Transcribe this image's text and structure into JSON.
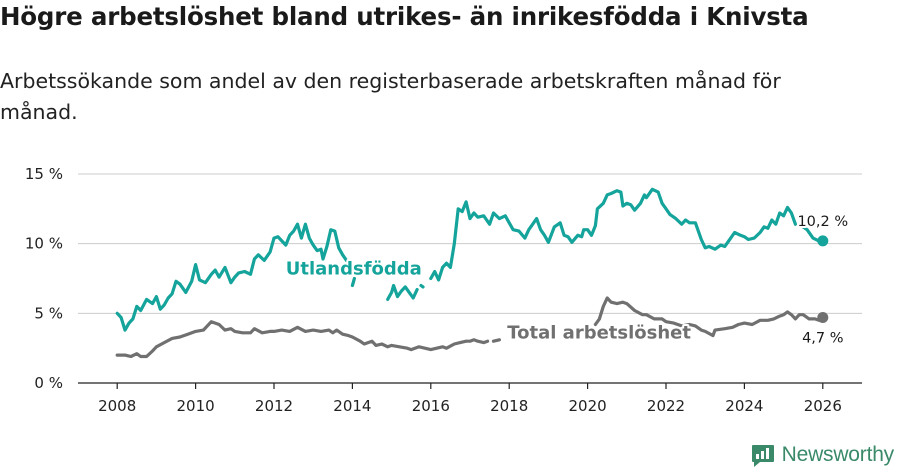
{
  "title": "Högre arbetslöshet bland utrikes- än inrikesfödda i Knivsta",
  "subtitle": "Arbetssökande som andel av den registerbaserade arbetskraften månad för månad.",
  "brand": "Newsworthy",
  "colors": {
    "teal": "#15a49b",
    "gray": "#707070",
    "grid": "#cccccc",
    "brand": "#3a8a6a"
  },
  "chart_data": {
    "type": "line",
    "title": "Högre arbetslöshet bland utrikes- än inrikesfödda i Knivsta",
    "xlabel": "",
    "ylabel": "",
    "xlim": [
      2007.0,
      2027.0
    ],
    "ylim": [
      0,
      15
    ],
    "x_ticks": [
      2008,
      2010,
      2012,
      2014,
      2016,
      2018,
      2020,
      2022,
      2024,
      2026
    ],
    "x_tick_labels": [
      "2008",
      "2010",
      "2012",
      "2014",
      "2016",
      "2018",
      "2020",
      "2022",
      "2024",
      "2026"
    ],
    "y_ticks": [
      0,
      5,
      10,
      15
    ],
    "y_tick_labels": [
      "0 %",
      "5 %",
      "10 %",
      "15 %"
    ],
    "grid": "horizontal",
    "series": [
      {
        "name": "Utlandsfödda",
        "color": "#15a49b",
        "label_position": [
          2012.3,
          7.8
        ],
        "end_label": "10,2 %",
        "segments": [
          [
            [
              2008.0,
              5.0
            ],
            [
              2008.1,
              4.7
            ],
            [
              2008.2,
              3.8
            ],
            [
              2008.3,
              4.3
            ],
            [
              2008.4,
              4.6
            ],
            [
              2008.5,
              5.5
            ],
            [
              2008.6,
              5.2
            ],
            [
              2008.75,
              6.0
            ],
            [
              2008.9,
              5.7
            ],
            [
              2009.0,
              6.2
            ],
            [
              2009.1,
              5.3
            ],
            [
              2009.2,
              5.6
            ],
            [
              2009.3,
              6.1
            ],
            [
              2009.4,
              6.4
            ],
            [
              2009.5,
              7.3
            ],
            [
              2009.6,
              7.1
            ],
            [
              2009.75,
              6.5
            ],
            [
              2009.9,
              7.3
            ],
            [
              2010.0,
              8.5
            ],
            [
              2010.1,
              7.4
            ],
            [
              2010.25,
              7.2
            ],
            [
              2010.4,
              7.8
            ],
            [
              2010.5,
              8.1
            ],
            [
              2010.6,
              7.6
            ],
            [
              2010.75,
              8.3
            ],
            [
              2010.9,
              7.2
            ],
            [
              2011.0,
              7.6
            ],
            [
              2011.1,
              7.9
            ],
            [
              2011.25,
              8.0
            ],
            [
              2011.4,
              7.8
            ],
            [
              2011.5,
              8.9
            ],
            [
              2011.6,
              9.2
            ],
            [
              2011.75,
              8.8
            ],
            [
              2011.9,
              9.4
            ],
            [
              2012.0,
              10.4
            ],
            [
              2012.1,
              10.5
            ],
            [
              2012.2,
              10.2
            ],
            [
              2012.3,
              9.9
            ],
            [
              2012.4,
              10.6
            ],
            [
              2012.5,
              10.9
            ],
            [
              2012.6,
              11.4
            ],
            [
              2012.7,
              10.4
            ],
            [
              2012.8,
              11.4
            ],
            [
              2012.9,
              10.4
            ],
            [
              2013.0,
              9.9
            ],
            [
              2013.1,
              9.5
            ],
            [
              2013.2,
              9.6
            ],
            [
              2013.25,
              8.9
            ],
            [
              2013.35,
              9.8
            ],
            [
              2013.45,
              11.0
            ],
            [
              2013.55,
              10.9
            ],
            [
              2013.65,
              9.7
            ],
            [
              2013.75,
              9.2
            ],
            [
              2013.85,
              8.8
            ]
          ],
          [
            [
              2014.0,
              7.0
            ],
            [
              2014.05,
              7.5
            ]
          ],
          [
            [
              2014.9,
              6.0
            ],
            [
              2015.0,
              6.5
            ],
            [
              2015.05,
              7.0
            ],
            [
              2015.15,
              6.2
            ],
            [
              2015.25,
              6.6
            ],
            [
              2015.35,
              6.9
            ],
            [
              2015.45,
              6.5
            ],
            [
              2015.55,
              6.1
            ],
            [
              2015.65,
              6.7
            ]
          ],
          [
            [
              2015.75,
              7.0
            ],
            [
              2015.8,
              6.9
            ]
          ],
          [
            [
              2016.0,
              7.5
            ],
            [
              2016.1,
              8.0
            ],
            [
              2016.2,
              7.4
            ],
            [
              2016.3,
              8.3
            ],
            [
              2016.4,
              8.6
            ],
            [
              2016.5,
              8.3
            ],
            [
              2016.6,
              10.0
            ],
            [
              2016.7,
              12.5
            ],
            [
              2016.8,
              12.3
            ],
            [
              2016.9,
              13.0
            ],
            [
              2017.0,
              11.8
            ],
            [
              2017.1,
              12.2
            ],
            [
              2017.2,
              11.9
            ],
            [
              2017.35,
              12.0
            ],
            [
              2017.5,
              11.4
            ],
            [
              2017.6,
              12.2
            ],
            [
              2017.75,
              11.8
            ],
            [
              2017.9,
              12.0
            ],
            [
              2018.0,
              11.5
            ],
            [
              2018.1,
              11.0
            ],
            [
              2018.25,
              10.9
            ],
            [
              2018.4,
              10.4
            ],
            [
              2018.5,
              11.0
            ],
            [
              2018.6,
              11.4
            ],
            [
              2018.7,
              11.8
            ],
            [
              2018.8,
              11.0
            ],
            [
              2018.9,
              10.6
            ],
            [
              2019.0,
              10.1
            ],
            [
              2019.15,
              11.2
            ],
            [
              2019.3,
              11.5
            ],
            [
              2019.4,
              10.6
            ],
            [
              2019.5,
              10.5
            ],
            [
              2019.6,
              10.1
            ],
            [
              2019.75,
              10.6
            ],
            [
              2019.85,
              10.5
            ],
            [
              2019.9,
              11.0
            ],
            [
              2020.0,
              11.0
            ],
            [
              2020.1,
              10.6
            ],
            [
              2020.2,
              11.3
            ],
            [
              2020.25,
              12.5
            ],
            [
              2020.4,
              12.9
            ],
            [
              2020.5,
              13.5
            ],
            [
              2020.6,
              13.6
            ],
            [
              2020.75,
              13.8
            ],
            [
              2020.85,
              13.7
            ],
            [
              2020.9,
              12.7
            ],
            [
              2021.0,
              12.9
            ],
            [
              2021.1,
              12.8
            ],
            [
              2021.2,
              12.4
            ],
            [
              2021.35,
              12.9
            ],
            [
              2021.45,
              13.5
            ],
            [
              2021.5,
              13.3
            ],
            [
              2021.65,
              13.9
            ],
            [
              2021.8,
              13.7
            ],
            [
              2021.9,
              12.9
            ],
            [
              2022.0,
              12.5
            ],
            [
              2022.1,
              12.1
            ],
            [
              2022.25,
              11.8
            ],
            [
              2022.4,
              11.4
            ],
            [
              2022.5,
              11.7
            ],
            [
              2022.6,
              11.5
            ],
            [
              2022.75,
              11.5
            ],
            [
              2022.9,
              10.3
            ],
            [
              2023.0,
              9.7
            ],
            [
              2023.1,
              9.8
            ],
            [
              2023.25,
              9.6
            ],
            [
              2023.4,
              9.9
            ],
            [
              2023.5,
              9.8
            ],
            [
              2023.6,
              10.2
            ],
            [
              2023.75,
              10.8
            ],
            [
              2023.9,
              10.6
            ],
            [
              2024.0,
              10.5
            ],
            [
              2024.1,
              10.3
            ],
            [
              2024.25,
              10.4
            ],
            [
              2024.4,
              10.8
            ],
            [
              2024.5,
              11.2
            ],
            [
              2024.6,
              11.1
            ],
            [
              2024.7,
              11.7
            ],
            [
              2024.8,
              11.4
            ],
            [
              2024.9,
              12.2
            ],
            [
              2025.0,
              12.0
            ],
            [
              2025.1,
              12.6
            ],
            [
              2025.2,
              12.2
            ],
            [
              2025.3,
              11.4
            ]
          ],
          [
            [
              2025.45,
              11.3
            ],
            [
              2025.6,
              11.0
            ],
            [
              2025.75,
              10.4
            ],
            [
              2025.9,
              10.2
            ],
            [
              2026.0,
              10.2
            ]
          ]
        ]
      },
      {
        "name": "Total arbetslöshet",
        "color": "#707070",
        "label_position": [
          2017.95,
          3.2
        ],
        "end_label": "4,7 %",
        "segments": [
          [
            [
              2008.0,
              2.0
            ],
            [
              2008.2,
              2.0
            ],
            [
              2008.35,
              1.9
            ],
            [
              2008.5,
              2.1
            ],
            [
              2008.6,
              1.9
            ],
            [
              2008.75,
              1.9
            ],
            [
              2008.9,
              2.3
            ],
            [
              2009.0,
              2.6
            ],
            [
              2009.2,
              2.9
            ],
            [
              2009.4,
              3.2
            ],
            [
              2009.6,
              3.3
            ],
            [
              2009.8,
              3.5
            ],
            [
              2010.0,
              3.7
            ],
            [
              2010.2,
              3.8
            ],
            [
              2010.4,
              4.4
            ],
            [
              2010.6,
              4.2
            ],
            [
              2010.75,
              3.8
            ],
            [
              2010.9,
              3.9
            ],
            [
              2011.0,
              3.7
            ],
            [
              2011.2,
              3.6
            ],
            [
              2011.4,
              3.6
            ],
            [
              2011.5,
              3.9
            ],
            [
              2011.7,
              3.6
            ],
            [
              2011.9,
              3.7
            ],
            [
              2012.0,
              3.7
            ],
            [
              2012.2,
              3.8
            ],
            [
              2012.4,
              3.7
            ],
            [
              2012.6,
              4.0
            ],
            [
              2012.8,
              3.7
            ],
            [
              2013.0,
              3.8
            ],
            [
              2013.2,
              3.7
            ],
            [
              2013.4,
              3.8
            ],
            [
              2013.5,
              3.6
            ],
            [
              2013.6,
              3.8
            ],
            [
              2013.75,
              3.5
            ],
            [
              2013.9,
              3.4
            ],
            [
              2014.0,
              3.3
            ],
            [
              2014.2,
              3.0
            ],
            [
              2014.3,
              2.8
            ],
            [
              2014.5,
              3.0
            ],
            [
              2014.6,
              2.7
            ],
            [
              2014.75,
              2.8
            ],
            [
              2014.9,
              2.6
            ],
            [
              2015.0,
              2.7
            ],
            [
              2015.2,
              2.6
            ],
            [
              2015.4,
              2.5
            ],
            [
              2015.5,
              2.4
            ],
            [
              2015.7,
              2.6
            ],
            [
              2015.85,
              2.5
            ],
            [
              2016.0,
              2.4
            ],
            [
              2016.15,
              2.5
            ],
            [
              2016.3,
              2.6
            ],
            [
              2016.4,
              2.5
            ],
            [
              2016.6,
              2.8
            ],
            [
              2016.75,
              2.9
            ],
            [
              2016.9,
              3.0
            ],
            [
              2017.0,
              3.0
            ],
            [
              2017.1,
              3.1
            ],
            [
              2017.2,
              3.0
            ],
            [
              2017.35,
              2.9
            ],
            [
              2017.45,
              3.0
            ]
          ],
          [
            [
              2017.6,
              3.0
            ],
            [
              2017.75,
              3.1
            ]
          ],
          [
            [
              2020.2,
              4.2
            ],
            [
              2020.3,
              4.6
            ],
            [
              2020.4,
              5.5
            ],
            [
              2020.5,
              6.1
            ],
            [
              2020.6,
              5.8
            ],
            [
              2020.75,
              5.7
            ],
            [
              2020.9,
              5.8
            ],
            [
              2021.0,
              5.7
            ],
            [
              2021.2,
              5.2
            ],
            [
              2021.4,
              4.9
            ],
            [
              2021.5,
              4.9
            ],
            [
              2021.7,
              4.6
            ],
            [
              2021.9,
              4.6
            ],
            [
              2022.0,
              4.4
            ],
            [
              2022.2,
              4.3
            ],
            [
              2022.4,
              4.1
            ],
            [
              2022.6,
              4.2
            ],
            [
              2022.75,
              4.1
            ],
            [
              2022.9,
              3.8
            ],
            [
              2023.0,
              3.7
            ],
            [
              2023.2,
              3.4
            ],
            [
              2023.25,
              3.8
            ],
            [
              2023.5,
              3.9
            ],
            [
              2023.7,
              4.0
            ],
            [
              2023.85,
              4.2
            ],
            [
              2024.0,
              4.3
            ],
            [
              2024.2,
              4.2
            ],
            [
              2024.4,
              4.5
            ],
            [
              2024.6,
              4.5
            ],
            [
              2024.75,
              4.6
            ],
            [
              2024.9,
              4.8
            ],
            [
              2025.0,
              4.9
            ],
            [
              2025.1,
              5.1
            ],
            [
              2025.2,
              4.9
            ],
            [
              2025.3,
              4.6
            ],
            [
              2025.4,
              4.9
            ],
            [
              2025.5,
              4.9
            ],
            [
              2025.65,
              4.6
            ],
            [
              2025.8,
              4.6
            ],
            [
              2025.9,
              4.5
            ],
            [
              2026.0,
              4.7
            ]
          ]
        ]
      }
    ]
  }
}
